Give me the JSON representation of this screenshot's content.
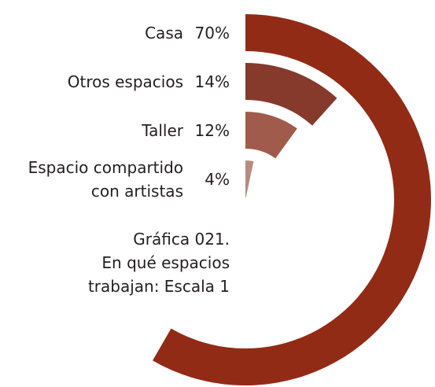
{
  "chart_data": {
    "type": "radial_bar",
    "categories": [
      "Casa",
      "Otros espacios",
      "Taller",
      "Espacio compartido\ncon artistas"
    ],
    "series": [
      {
        "values": [
          70,
          14,
          12,
          4
        ],
        "value_labels": [
          "70%",
          "14%",
          "12%",
          "4%"
        ],
        "colors": [
          "#922b16",
          "#853a2b",
          "#a05b4d",
          "#b98a80"
        ]
      }
    ],
    "ylim": [
      0,
      120
    ],
    "annotation": "Gráfica 021.\nEn qué espacios\ntrabajan: Escala 1"
  }
}
